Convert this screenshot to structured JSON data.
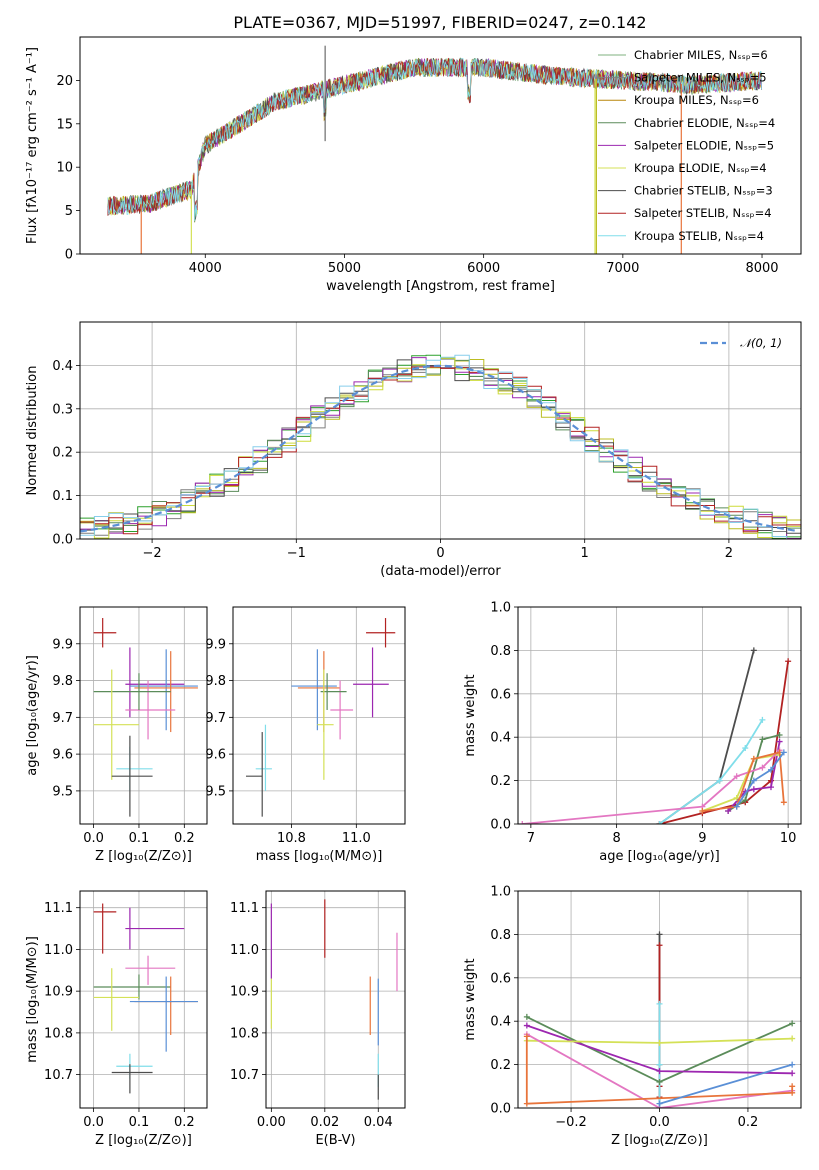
{
  "figure_title": "PLATE=0367, MJD=51997, FIBERID=0247, z=0.142",
  "colors": [
    "#2ca02c",
    "#7f7f7f",
    "#bcbd22",
    "#5b8c5a",
    "#9c27b0",
    "#cddc39",
    "#4d4d4d",
    "#b22222",
    "#87ceeb"
  ],
  "chart_data": [
    {
      "type": "line",
      "id": "spectrum",
      "xlabel": "wavelength [Angstrom, rest frame]",
      "ylabel": "Flux [fλ10⁻¹⁷ erg cm⁻² s⁻¹ A⁻¹]",
      "xlim": [
        3100,
        8280
      ],
      "ylim": [
        0,
        25
      ],
      "xticks": [
        4000,
        5000,
        6000,
        7000,
        8000
      ],
      "yticks": [
        0,
        5,
        10,
        15,
        20
      ],
      "grid": false,
      "legend_position": "top-right",
      "legend": [
        {
          "label": "Chabrier MILES, N_SSP=6",
          "color": "#7fb27f"
        },
        {
          "label": "Salpeter MILES, N_SSP=5",
          "color": "#7f7f7f"
        },
        {
          "label": "Kroupa MILES, N_SSP=6",
          "color": "#b8860b"
        },
        {
          "label": "Chabrier ELODIE, N_SSP=4",
          "color": "#5b8c5a"
        },
        {
          "label": "Salpeter ELODIE, N_SSP=5",
          "color": "#9c27b0"
        },
        {
          "label": "Kroupa ELODIE, N_SSP=4",
          "color": "#d4e157"
        },
        {
          "label": "Chabrier STELIB, N_SSP=3",
          "color": "#4d4d4d"
        },
        {
          "label": "Salpeter STELIB, N_SSP=4",
          "color": "#b22222"
        },
        {
          "label": "Kroupa STELIB, N_SSP=4",
          "color": "#80deea"
        }
      ],
      "continuum": {
        "x": [
          3300,
          3600,
          3900,
          4000,
          4200,
          4500,
          5000,
          5500,
          6000,
          6500,
          7000,
          7500,
          8000
        ],
        "y": [
          5.5,
          5.8,
          7.5,
          12.5,
          14.5,
          17.5,
          19.5,
          21.5,
          21.5,
          20.5,
          20.0,
          19.5,
          20.0
        ]
      },
      "drops": [
        {
          "x": 3540,
          "color": "#e8743b"
        },
        {
          "x": 3900,
          "color": "#d4e157"
        },
        {
          "x": 6800,
          "color": "#d4e157"
        },
        {
          "x": 6810,
          "color": "#bcbd22"
        },
        {
          "x": 7420,
          "color": "#e8743b"
        }
      ]
    },
    {
      "type": "bar",
      "id": "residuals",
      "xlabel": "(data-model)/error",
      "ylabel": "Normed distribution",
      "xlim": [
        -2.5,
        2.5
      ],
      "ylim": [
        0,
        0.5
      ],
      "xticks": [
        -2,
        -1,
        0,
        1,
        2
      ],
      "yticks": [
        0.0,
        0.1,
        0.2,
        0.3,
        0.4
      ],
      "grid": true,
      "legend_position": "top-right",
      "legend": [
        {
          "label": "𝒩(0, 1)",
          "color": "#5a8fd6"
        }
      ],
      "bin_width": 0.1,
      "n_histograms": 9,
      "reference_curve": "N(0,1)"
    },
    {
      "type": "scatter",
      "id": "age_vs_Z",
      "xlabel": "Z [log₁₀(Z/Z⊙)]",
      "ylabel": "age  [log₁₀(age/yr)]",
      "xlim": [
        -0.03,
        0.25
      ],
      "ylim": [
        9.41,
        10.0
      ],
      "xticks": [
        0.0,
        0.1,
        0.2
      ],
      "yticks": [
        9.5,
        9.6,
        9.7,
        9.8,
        9.9
      ],
      "grid": true,
      "points": [
        {
          "x": 0.02,
          "y": 9.93,
          "xerr": [
            0.02,
            0.03
          ],
          "yerr": [
            0.04,
            0.04
          ],
          "color": "#b22222"
        },
        {
          "x": 0.08,
          "y": 9.79,
          "xerr": [
            0.01,
            0.12
          ],
          "yerr": [
            0.09,
            0.1
          ],
          "color": "#9c27b0"
        },
        {
          "x": 0.16,
          "y": 9.785,
          "xerr": [
            0.08,
            0.07
          ],
          "yerr": [
            0.12,
            0.1
          ],
          "color": "#5a8fd6"
        },
        {
          "x": 0.17,
          "y": 9.78,
          "xerr": [
            0.08,
            0.06
          ],
          "yerr": [
            0.12,
            0.1
          ],
          "color": "#e8743b"
        },
        {
          "x": 0.12,
          "y": 9.72,
          "xerr": [
            0.05,
            0.06
          ],
          "yerr": [
            0.08,
            0.08
          ],
          "color": "#e377c2"
        },
        {
          "x": 0.1,
          "y": 9.77,
          "xerr": [
            0.1,
            0.07
          ],
          "yerr": [
            0.05,
            0.05
          ],
          "color": "#5b8c5a"
        },
        {
          "x": 0.04,
          "y": 9.68,
          "xerr": [
            0.04,
            0.06
          ],
          "yerr": [
            0.15,
            0.15
          ],
          "color": "#d4e157"
        },
        {
          "x": 0.08,
          "y": 9.56,
          "xerr": [
            0.03,
            0.05
          ],
          "yerr": [
            0.06,
            0.06
          ],
          "color": "#80deea"
        },
        {
          "x": 0.08,
          "y": 9.54,
          "xerr": [
            0.04,
            0.05
          ],
          "yerr": [
            0.11,
            0.11
          ],
          "color": "#4d4d4d"
        }
      ]
    },
    {
      "type": "scatter",
      "id": "age_vs_mass",
      "xlabel": "mass [log₁₀(M/M⊙)]",
      "ylabel": "",
      "xlim": [
        10.62,
        11.15
      ],
      "ylim": [
        9.41,
        10.0
      ],
      "xticks": [
        10.8,
        11.0
      ],
      "yticks": [
        9.5,
        9.6,
        9.7,
        9.8,
        9.9
      ],
      "grid": true,
      "points": [
        {
          "x": 11.09,
          "y": 9.93,
          "xerr": [
            0.06,
            0.03
          ],
          "yerr": [
            0.04,
            0.04
          ],
          "color": "#b22222"
        },
        {
          "x": 11.05,
          "y": 9.79,
          "xerr": [
            0.06,
            0.05
          ],
          "yerr": [
            0.09,
            0.1
          ],
          "color": "#9c27b0"
        },
        {
          "x": 10.88,
          "y": 9.785,
          "xerr": [
            0.08,
            0.06
          ],
          "yerr": [
            0.12,
            0.1
          ],
          "color": "#5a8fd6"
        },
        {
          "x": 10.9,
          "y": 9.78,
          "xerr": [
            0.08,
            0.05
          ],
          "yerr": [
            0.12,
            0.1
          ],
          "color": "#e8743b"
        },
        {
          "x": 10.95,
          "y": 9.72,
          "xerr": [
            0.03,
            0.04
          ],
          "yerr": [
            0.08,
            0.08
          ],
          "color": "#e377c2"
        },
        {
          "x": 10.91,
          "y": 9.77,
          "xerr": [
            0.02,
            0.06
          ],
          "yerr": [
            0.05,
            0.05
          ],
          "color": "#5b8c5a"
        },
        {
          "x": 10.9,
          "y": 9.68,
          "xerr": [
            0.02,
            0.03
          ],
          "yerr": [
            0.15,
            0.15
          ],
          "color": "#d4e157"
        },
        {
          "x": 10.72,
          "y": 9.56,
          "xerr": [
            0.03,
            0.02
          ],
          "yerr": [
            0.06,
            0.12
          ],
          "color": "#80deea"
        },
        {
          "x": 10.71,
          "y": 9.54,
          "xerr": [
            0.05,
            0.0
          ],
          "yerr": [
            0.11,
            0.12
          ],
          "color": "#4d4d4d"
        }
      ]
    },
    {
      "type": "line",
      "id": "massweight_vs_age",
      "xlabel": "age  [log₁₀(age/yr)]",
      "ylabel": "mass weight",
      "xlim": [
        6.85,
        10.15
      ],
      "ylim": [
        0,
        1.0
      ],
      "xticks": [
        7,
        8,
        9,
        10
      ],
      "yticks": [
        0.0,
        0.2,
        0.4,
        0.6,
        0.8,
        1.0
      ],
      "grid": true,
      "series": [
        {
          "x": [
            8.5,
            9.2,
            9.6
          ],
          "y": [
            0.0,
            0.2,
            0.8
          ],
          "color": "#4d4d4d"
        },
        {
          "x": [
            8.5,
            9.0,
            9.5,
            9.8,
            10.0
          ],
          "y": [
            0.0,
            0.05,
            0.1,
            0.2,
            0.75
          ],
          "color": "#b22222"
        },
        {
          "x": [
            8.5,
            9.2,
            9.5,
            9.7
          ],
          "y": [
            0.0,
            0.2,
            0.35,
            0.48
          ],
          "color": "#80deea"
        },
        {
          "x": [
            9.3,
            9.5,
            9.7,
            9.9
          ],
          "y": [
            0.06,
            0.11,
            0.39,
            0.41
          ],
          "color": "#5b8c5a"
        },
        {
          "x": [
            9.3,
            9.5,
            9.6,
            9.8,
            9.9
          ],
          "y": [
            0.06,
            0.15,
            0.16,
            0.17,
            0.38
          ],
          "color": "#9c27b0"
        },
        {
          "x": [
            9.0,
            9.4,
            9.6,
            9.9
          ],
          "y": [
            0.06,
            0.12,
            0.3,
            0.32
          ],
          "color": "#d4e157"
        },
        {
          "x": [
            6.9,
            9.0,
            9.4,
            9.7,
            9.9
          ],
          "y": [
            0.0,
            0.08,
            0.22,
            0.26,
            0.34
          ],
          "color": "#e377c2"
        },
        {
          "x": [
            9.0,
            9.4,
            9.6,
            9.9,
            9.95
          ],
          "y": [
            0.06,
            0.08,
            0.3,
            0.33,
            0.1
          ],
          "color": "#e8743b"
        },
        {
          "x": [
            9.4,
            9.6,
            9.8,
            9.95
          ],
          "y": [
            0.08,
            0.2,
            0.25,
            0.33
          ],
          "color": "#5a8fd6"
        }
      ]
    },
    {
      "type": "scatter",
      "id": "mass_vs_Z",
      "xlabel": "Z [log₁₀(Z/Z⊙)]",
      "ylabel": "mass [log₁₀(M/M⊙)]",
      "xlim": [
        -0.03,
        0.25
      ],
      "ylim": [
        10.62,
        11.14
      ],
      "xticks": [
        0.0,
        0.1,
        0.2
      ],
      "yticks": [
        10.7,
        10.8,
        10.9,
        11.0,
        11.1
      ],
      "grid": true,
      "points": [
        {
          "x": 0.02,
          "y": 11.09,
          "xerr": [
            0.02,
            0.03
          ],
          "yerr": [
            0.1,
            0.02
          ],
          "color": "#b22222"
        },
        {
          "x": 0.08,
          "y": 11.05,
          "xerr": [
            0.01,
            0.12
          ],
          "yerr": [
            0.05,
            0.05
          ],
          "color": "#9c27b0"
        },
        {
          "x": 0.12,
          "y": 10.955,
          "xerr": [
            0.05,
            0.06
          ],
          "yerr": [
            0.04,
            0.03
          ],
          "color": "#e377c2"
        },
        {
          "x": 0.1,
          "y": 10.91,
          "xerr": [
            0.1,
            0.07
          ],
          "yerr": [
            0.03,
            0.03
          ],
          "color": "#5b8c5a"
        },
        {
          "x": 0.04,
          "y": 10.885,
          "xerr": [
            0.04,
            0.06
          ],
          "yerr": [
            0.08,
            0.07
          ],
          "color": "#d4e157"
        },
        {
          "x": 0.17,
          "y": 10.875,
          "xerr": [
            0.08,
            0.06
          ],
          "yerr": [
            0.08,
            0.06
          ],
          "color": "#e8743b"
        },
        {
          "x": 0.16,
          "y": 10.875,
          "xerr": [
            0.08,
            0.07
          ],
          "yerr": [
            0.12,
            0.06
          ],
          "color": "#5a8fd6"
        },
        {
          "x": 0.08,
          "y": 10.72,
          "xerr": [
            0.03,
            0.05
          ],
          "yerr": [
            0.03,
            0.03
          ],
          "color": "#80deea"
        },
        {
          "x": 0.08,
          "y": 10.705,
          "xerr": [
            0.04,
            0.05
          ],
          "yerr": [
            0.05,
            0.02
          ],
          "color": "#4d4d4d"
        }
      ]
    },
    {
      "type": "scatter",
      "id": "mass_vs_EBV",
      "xlabel": "E(B-V)",
      "ylabel": "",
      "xlim": [
        -0.002,
        0.05
      ],
      "ylim": [
        10.62,
        11.14
      ],
      "xticks": [
        0.0,
        0.02,
        0.04
      ],
      "yticks": [
        10.7,
        10.8,
        10.9,
        11.0,
        11.1
      ],
      "grid": true,
      "points": [
        {
          "x": 0.02,
          "y": 11.05,
          "xerr": [
            0,
            0
          ],
          "yerr": [
            0.07,
            0.07
          ],
          "color": "#b22222"
        },
        {
          "x": 0.0,
          "y": 11.05,
          "xerr": [
            0,
            0
          ],
          "yerr": [
            0.12,
            0.06
          ],
          "color": "#9c27b0"
        },
        {
          "x": 0.0,
          "y": 10.87,
          "xerr": [
            0,
            0
          ],
          "yerr": [
            0.06,
            0.06
          ],
          "color": "#d4e157"
        },
        {
          "x": 0.047,
          "y": 10.97,
          "xerr": [
            0,
            0
          ],
          "yerr": [
            0.07,
            0.07
          ],
          "color": "#e377c2"
        },
        {
          "x": 0.037,
          "y": 10.865,
          "xerr": [
            0,
            0
          ],
          "yerr": [
            0.07,
            0.07
          ],
          "color": "#e8743b"
        },
        {
          "x": 0.04,
          "y": 10.85,
          "xerr": [
            0,
            0
          ],
          "yerr": [
            0.08,
            0.08
          ],
          "color": "#5a8fd6"
        },
        {
          "x": 0.04,
          "y": 10.71,
          "xerr": [
            0,
            0
          ],
          "yerr": [
            0.04,
            0.04
          ],
          "color": "#80deea"
        },
        {
          "x": 0.04,
          "y": 10.67,
          "xerr": [
            0,
            0
          ],
          "yerr": [
            0.03,
            0.03
          ],
          "color": "#4d4d4d"
        }
      ]
    },
    {
      "type": "line",
      "id": "massweight_vs_Z",
      "xlabel": "Z [log₁₀(Z/Z⊙)]",
      "ylabel": "mass weight",
      "xlim": [
        -0.32,
        0.32
      ],
      "ylim": [
        0,
        1.0
      ],
      "xticks": [
        -0.2,
        0.0,
        0.2
      ],
      "yticks": [
        0.0,
        0.2,
        0.4,
        0.6,
        0.8,
        1.0
      ],
      "grid": true,
      "series": [
        {
          "x": [
            0.0,
            0.0,
            0.0
          ],
          "y": [
            0.0,
            0.2,
            0.8
          ],
          "color": "#4d4d4d"
        },
        {
          "x": [
            0.0,
            0.0,
            0.0
          ],
          "y": [
            0.05,
            0.1,
            0.75
          ],
          "color": "#b22222"
        },
        {
          "x": [
            0.0,
            0.0,
            0.0
          ],
          "y": [
            0.0,
            0.2,
            0.48
          ],
          "color": "#80deea"
        },
        {
          "x": [
            -0.3,
            0.0,
            0.3
          ],
          "y": [
            0.42,
            0.12,
            0.39
          ],
          "color": "#5b8c5a"
        },
        {
          "x": [
            -0.3,
            0.0,
            0.3
          ],
          "y": [
            0.38,
            0.17,
            0.16
          ],
          "color": "#9c27b0"
        },
        {
          "x": [
            -0.3,
            0.0,
            0.3
          ],
          "y": [
            0.31,
            0.3,
            0.32
          ],
          "color": "#d4e157"
        },
        {
          "x": [
            -0.3,
            0.0,
            0.3
          ],
          "y": [
            0.34,
            0.0,
            0.08
          ],
          "color": "#e377c2"
        },
        {
          "x": [
            -0.3,
            -0.3,
            0.3,
            0.3
          ],
          "y": [
            0.33,
            0.02,
            0.07,
            0.1
          ],
          "color": "#e8743b"
        },
        {
          "x": [
            0.0,
            0.3
          ],
          "y": [
            0.02,
            0.2
          ],
          "color": "#5a8fd6"
        }
      ]
    }
  ]
}
